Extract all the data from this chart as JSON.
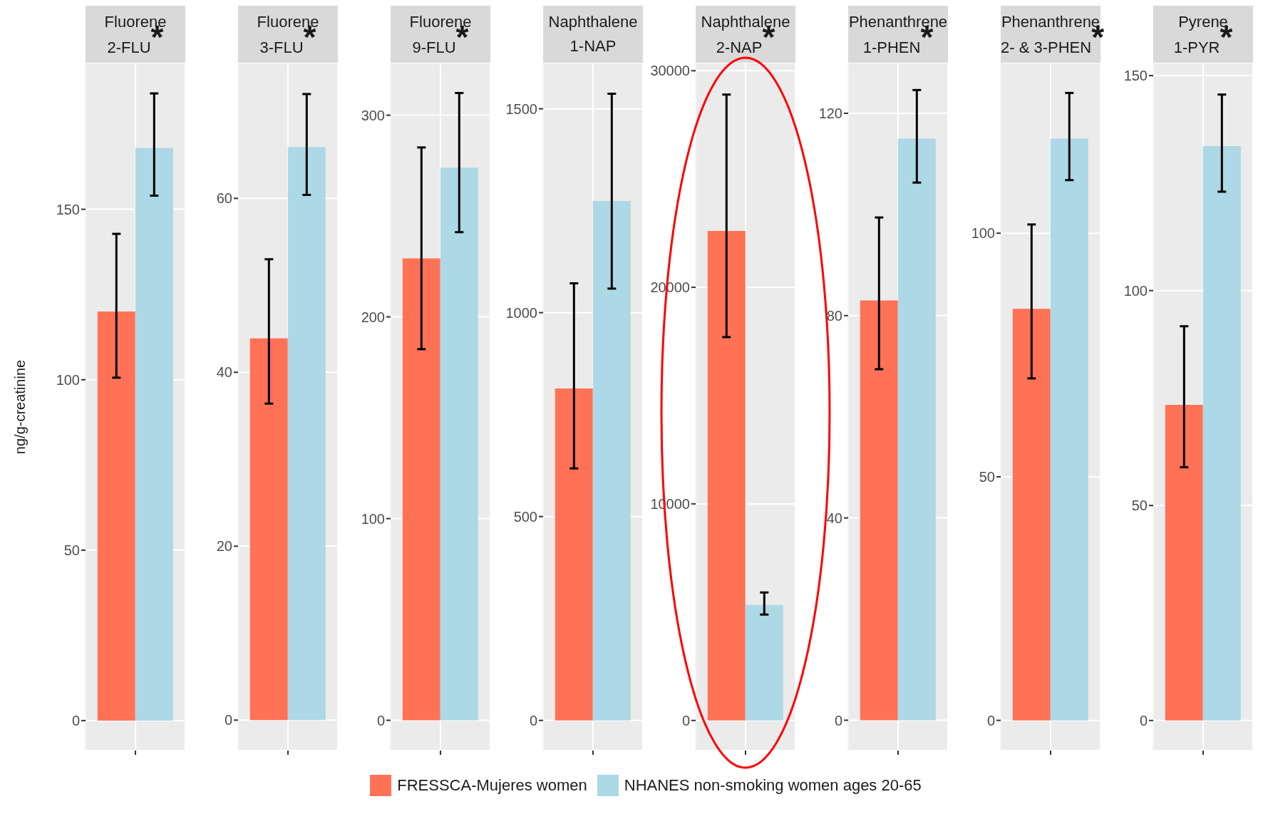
{
  "chart_data": [
    {
      "type": "bar",
      "title": "Fluorene",
      "subtitle": "2-FLU",
      "annotations": [
        "*"
      ],
      "ylabel": "ng/g-creatinine",
      "categories": [
        null
      ],
      "grid": true,
      "legend": "bottom",
      "ylim": [
        -8.8,
        193
      ],
      "yticks": [
        0,
        50,
        100,
        150
      ],
      "series": [
        {
          "name": "FRESSCA-Mujeres women",
          "color": "#ff7256",
          "values": [
            120
          ],
          "errors": [
            [
              100.6,
              142.8
            ]
          ]
        },
        {
          "name": "NHANES non-smoking women ages 20-65",
          "color": "#add8e6",
          "values": [
            168
          ],
          "errors": [
            [
              154,
              184
            ]
          ]
        }
      ]
    },
    {
      "type": "bar",
      "title": "Fluorene",
      "subtitle": "3-FLU",
      "annotations": [
        "*"
      ],
      "categories": [
        null
      ],
      "grid": true,
      "ylim": [
        -3.5,
        75.6
      ],
      "yticks": [
        0,
        20,
        40,
        60
      ],
      "series": [
        {
          "color": "#ff7256",
          "values": [
            43.9
          ],
          "errors": [
            [
              36.4,
              53
            ]
          ]
        },
        {
          "color": "#add8e6",
          "values": [
            65.9
          ],
          "errors": [
            [
              60.4,
              72
            ]
          ]
        }
      ]
    },
    {
      "type": "bar",
      "title": "Fluorene",
      "subtitle": "9-FLU",
      "annotations": [
        "*"
      ],
      "categories": [
        null
      ],
      "grid": true,
      "ylim": [
        -15,
        326
      ],
      "yticks": [
        0,
        100,
        200,
        300
      ],
      "series": [
        {
          "color": "#ff7256",
          "values": [
            229
          ],
          "errors": [
            [
              184,
              284
            ]
          ]
        },
        {
          "color": "#add8e6",
          "values": [
            274
          ],
          "errors": [
            [
              242,
              311
            ]
          ]
        }
      ]
    },
    {
      "type": "bar",
      "title": "Naphthalene",
      "subtitle": "1-NAP",
      "categories": [
        null
      ],
      "grid": true,
      "ylim": [
        -74,
        1613
      ],
      "yticks": [
        0,
        500,
        1000,
        1500
      ],
      "series": [
        {
          "color": "#ff7256",
          "values": [
            814
          ],
          "errors": [
            [
              618,
              1072
            ]
          ]
        },
        {
          "color": "#add8e6",
          "values": [
            1274
          ],
          "errors": [
            [
              1059,
              1537
            ]
          ]
        }
      ]
    },
    {
      "type": "bar",
      "title": "Naphthalene",
      "subtitle": "2-NAP",
      "annotations": [
        "*"
      ],
      "categories": [
        null
      ],
      "grid": true,
      "ylim": [
        -1390,
        30370
      ],
      "yticks": [
        0,
        10000,
        20000,
        30000
      ],
      "series": [
        {
          "color": "#ff7256",
          "values": [
            22600
          ],
          "errors": [
            [
              17700,
              28900
            ]
          ]
        },
        {
          "color": "#add8e6",
          "values": [
            5330
          ],
          "errors": [
            [
              4890,
              5910
            ]
          ]
        }
      ]
    },
    {
      "type": "bar",
      "title": "Phenanthrene",
      "subtitle": "1-PHEN",
      "annotations": [
        "*"
      ],
      "categories": [
        null
      ],
      "grid": true,
      "ylim": [
        -6,
        130
      ],
      "yticks": [
        0,
        40,
        80,
        120
      ],
      "series": [
        {
          "color": "#ff7256",
          "values": [
            83
          ],
          "errors": [
            [
              69.4,
              99.4
            ]
          ]
        },
        {
          "color": "#add8e6",
          "values": [
            115
          ],
          "errors": [
            [
              106.3,
              124.6
            ]
          ]
        }
      ]
    },
    {
      "type": "bar",
      "title": "Phenanthrene",
      "subtitle": "2- & 3-PHEN",
      "annotations": [
        "*"
      ],
      "categories": [
        null
      ],
      "grid": true,
      "ylim": [
        -6.2,
        135
      ],
      "yticks": [
        0,
        50,
        100
      ],
      "series": [
        {
          "color": "#ff7256",
          "values": [
            84.5
          ],
          "errors": [
            [
              70.2,
              101.8
            ]
          ]
        },
        {
          "color": "#add8e6",
          "values": [
            119.4
          ],
          "errors": [
            [
              110.9,
              128.8
            ]
          ]
        }
      ]
    },
    {
      "type": "bar",
      "title": "Pyrene",
      "subtitle": "1-PYR",
      "annotations": [
        "*"
      ],
      "categories": [
        null
      ],
      "grid": true,
      "ylim": [
        -7,
        153
      ],
      "yticks": [
        0,
        50,
        100,
        150
      ],
      "series": [
        {
          "color": "#ff7256",
          "values": [
            73.4
          ],
          "errors": [
            [
              58.9,
              91.7
            ]
          ]
        },
        {
          "color": "#add8e6",
          "values": [
            133.6
          ],
          "errors": [
            [
              123,
              145.6
            ]
          ]
        }
      ]
    }
  ]
}
